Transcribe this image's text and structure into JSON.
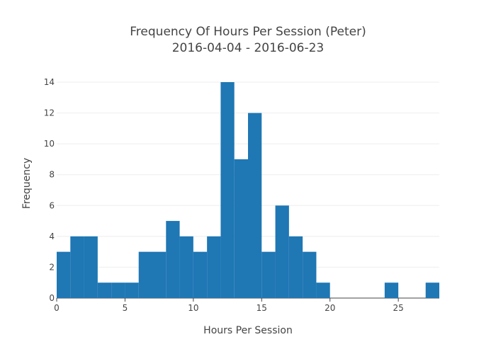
{
  "chart_data": {
    "type": "bar",
    "subtype": "histogram",
    "title": "Frequency Of Hours Per Session (Peter)",
    "subtitle": "2016-04-04 - 2016-06-23",
    "xlabel": "Hours Per Session",
    "ylabel": "Frequency",
    "xlim": [
      0,
      28
    ],
    "ylim": [
      0,
      14
    ],
    "xticks": [
      "0",
      "5",
      "10",
      "15",
      "20",
      "25"
    ],
    "yticks": [
      "0",
      "2",
      "4",
      "6",
      "8",
      "10",
      "12",
      "14"
    ],
    "bin_width": 1,
    "bin_starts": [
      0,
      1,
      2,
      3,
      4,
      5,
      6,
      7,
      8,
      9,
      10,
      11,
      12,
      13,
      14,
      15,
      16,
      17,
      18,
      19,
      20,
      21,
      22,
      23,
      24,
      25,
      26,
      27
    ],
    "values": [
      3,
      4,
      4,
      1,
      1,
      1,
      3,
      3,
      5,
      4,
      3,
      4,
      14,
      9,
      12,
      3,
      6,
      4,
      3,
      1,
      0,
      0,
      0,
      0,
      1,
      0,
      0,
      1
    ],
    "grid": true,
    "bar_color": "#1f77b4"
  }
}
